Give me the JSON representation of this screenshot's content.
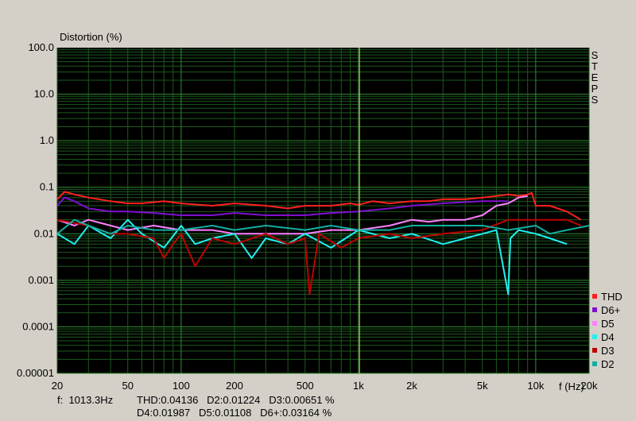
{
  "chart_data": {
    "type": "line",
    "title": "Distortion (%)",
    "xlabel": "f (Hz)",
    "ylabel": "Distortion (%)",
    "x_scale": "log",
    "y_scale": "log",
    "xlim": [
      20,
      20000
    ],
    "ylim": [
      1e-05,
      100
    ],
    "x_ticks": [
      {
        "value": 20,
        "label": "20"
      },
      {
        "value": 50,
        "label": "50"
      },
      {
        "value": 100,
        "label": "100"
      },
      {
        "value": 200,
        "label": "200"
      },
      {
        "value": 500,
        "label": "500"
      },
      {
        "value": 1000,
        "label": "1k"
      },
      {
        "value": 2000,
        "label": "2k"
      },
      {
        "value": 5000,
        "label": "5k"
      },
      {
        "value": 10000,
        "label": "10k"
      },
      {
        "value": 20000,
        "label": "20k"
      }
    ],
    "y_ticks": [
      {
        "value": 100,
        "label": "100.0"
      },
      {
        "value": 10,
        "label": "10.0"
      },
      {
        "value": 1,
        "label": "1.0"
      },
      {
        "value": 0.1,
        "label": "0.1"
      },
      {
        "value": 0.01,
        "label": "0.01"
      },
      {
        "value": 0.001,
        "label": "0.001"
      },
      {
        "value": 0.0001,
        "label": "0.0001"
      },
      {
        "value": 1e-05,
        "label": "0.00001"
      }
    ],
    "side_label": [
      "S",
      "T",
      "E",
      "P",
      "S"
    ],
    "grid": true,
    "cursor_x": 1013.3,
    "legend_position": "bottom-right",
    "series": [
      {
        "name": "THD",
        "color": "#ff2020",
        "x": [
          20,
          22,
          25,
          30,
          40,
          50,
          60,
          80,
          100,
          150,
          200,
          300,
          400,
          500,
          700,
          900,
          1000,
          1200,
          1500,
          2000,
          2500,
          3000,
          4000,
          5000,
          6000,
          7000,
          8000,
          9000,
          9500,
          10000,
          12000,
          15000,
          18000
        ],
        "values": [
          0.055,
          0.08,
          0.07,
          0.06,
          0.05,
          0.045,
          0.045,
          0.05,
          0.045,
          0.04,
          0.045,
          0.04,
          0.035,
          0.04,
          0.04,
          0.045,
          0.042,
          0.05,
          0.045,
          0.05,
          0.05,
          0.055,
          0.055,
          0.06,
          0.065,
          0.07,
          0.065,
          0.07,
          0.075,
          0.04,
          0.04,
          0.03,
          0.02
        ]
      },
      {
        "name": "D6+",
        "color": "#8010d0",
        "x": [
          20,
          22,
          25,
          30,
          40,
          50,
          70,
          100,
          150,
          200,
          300,
          500,
          700,
          1000,
          1500,
          2000,
          3000,
          5000,
          7000
        ],
        "values": [
          0.04,
          0.06,
          0.05,
          0.035,
          0.03,
          0.03,
          0.028,
          0.025,
          0.025,
          0.028,
          0.025,
          0.025,
          0.028,
          0.03,
          0.035,
          0.04,
          0.045,
          0.05,
          0.05
        ]
      },
      {
        "name": "D5",
        "color": "#ff80ff",
        "x": [
          20,
          25,
          30,
          40,
          50,
          70,
          100,
          150,
          200,
          300,
          500,
          700,
          1000,
          1500,
          2000,
          2500,
          3000,
          4000,
          5000,
          6000,
          7000,
          8000,
          9000
        ],
        "values": [
          0.02,
          0.015,
          0.02,
          0.015,
          0.012,
          0.015,
          0.012,
          0.012,
          0.01,
          0.01,
          0.01,
          0.012,
          0.012,
          0.015,
          0.02,
          0.018,
          0.02,
          0.02,
          0.025,
          0.04,
          0.045,
          0.06,
          0.065
        ]
      },
      {
        "name": "D4",
        "color": "#20f0f0",
        "x": [
          20,
          25,
          30,
          40,
          50,
          60,
          80,
          100,
          120,
          150,
          200,
          250,
          300,
          400,
          500,
          700,
          1000,
          1500,
          2000,
          3000,
          4000,
          5000,
          6000,
          7000,
          7200,
          8000,
          10000,
          12000,
          15000
        ],
        "values": [
          0.01,
          0.006,
          0.015,
          0.008,
          0.02,
          0.01,
          0.005,
          0.015,
          0.006,
          0.008,
          0.01,
          0.003,
          0.008,
          0.006,
          0.01,
          0.005,
          0.012,
          0.008,
          0.01,
          0.006,
          0.008,
          0.01,
          0.012,
          0.0005,
          0.008,
          0.012,
          0.01,
          0.008,
          0.006
        ]
      },
      {
        "name": "D3",
        "color": "#c00000",
        "x": [
          20,
          30,
          40,
          50,
          70,
          80,
          90,
          100,
          120,
          150,
          200,
          300,
          400,
          500,
          530,
          600,
          800,
          1000,
          1500,
          2000,
          3000,
          5000,
          7000,
          10000,
          15000,
          18000
        ],
        "values": [
          0.02,
          0.015,
          0.01,
          0.01,
          0.008,
          0.003,
          0.006,
          0.01,
          0.002,
          0.008,
          0.006,
          0.01,
          0.006,
          0.008,
          0.0005,
          0.01,
          0.005,
          0.008,
          0.01,
          0.008,
          0.01,
          0.012,
          0.02,
          0.02,
          0.02,
          0.015
        ]
      },
      {
        "name": "D2",
        "color": "#10b0a0",
        "x": [
          20,
          25,
          30,
          40,
          50,
          70,
          100,
          150,
          200,
          300,
          500,
          700,
          1000,
          1500,
          2000,
          3000,
          5000,
          7000,
          10000,
          12000,
          15000,
          20000
        ],
        "values": [
          0.01,
          0.02,
          0.015,
          0.01,
          0.015,
          0.012,
          0.012,
          0.015,
          0.012,
          0.015,
          0.012,
          0.015,
          0.012,
          0.012,
          0.015,
          0.015,
          0.015,
          0.012,
          0.015,
          0.01,
          0.012,
          0.015
        ]
      }
    ],
    "readout": {
      "f": "f:  1013.3Hz",
      "line1": "THD:0.04136   D2:0.01224   D3:0.00651 %",
      "line2": "D4:0.01987   D5:0.01108   D6+:0.03164 %"
    }
  }
}
